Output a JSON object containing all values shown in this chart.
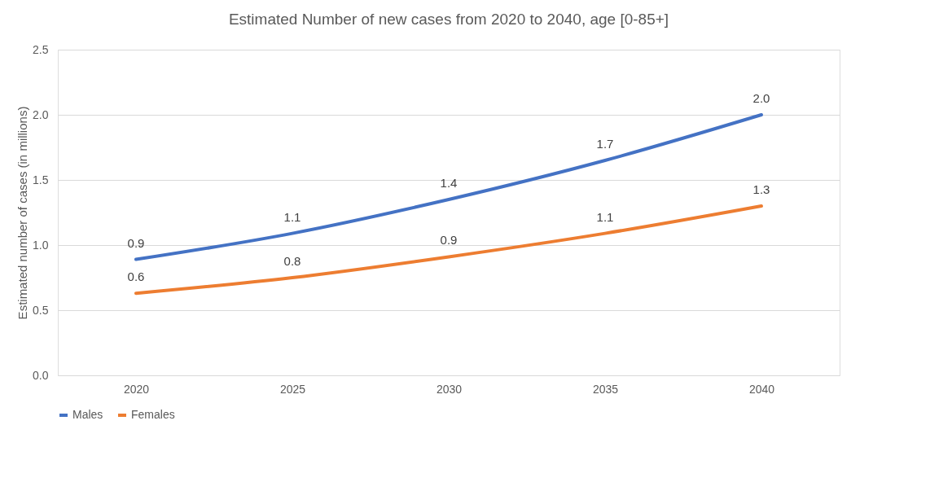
{
  "chart_data": {
    "type": "line",
    "title": "Estimated Number of new cases from 2020 to 2040, age [0-85+]",
    "ylabel": "Estimated number of cases (in millions)",
    "categories": [
      "2020",
      "2025",
      "2030",
      "2035",
      "2040"
    ],
    "series": [
      {
        "name": "Males",
        "color": "#4472c4",
        "values": [
          0.89,
          1.09,
          1.35,
          1.65,
          2.0
        ],
        "value_labels": [
          "0.9",
          "1.1",
          "1.4",
          "1.7",
          "2.0"
        ]
      },
      {
        "name": "Females",
        "color": "#ed7d31",
        "values": [
          0.63,
          0.75,
          0.91,
          1.09,
          1.3
        ],
        "value_labels": [
          "0.6",
          "0.8",
          "0.9",
          "1.1",
          "1.3"
        ]
      }
    ],
    "ylim": [
      0,
      2.5
    ],
    "yticks": [
      {
        "value": 0,
        "label": "0.0"
      },
      {
        "value": 0.5,
        "label": "0.5"
      },
      {
        "value": 1,
        "label": "1.0"
      },
      {
        "value": 1.5,
        "label": "1.5"
      },
      {
        "value": 2,
        "label": "2.0"
      },
      {
        "value": 2.5,
        "label": "2.5"
      }
    ],
    "grid": "y",
    "legend": "bottom",
    "marker": "none",
    "line_style": "solid"
  }
}
